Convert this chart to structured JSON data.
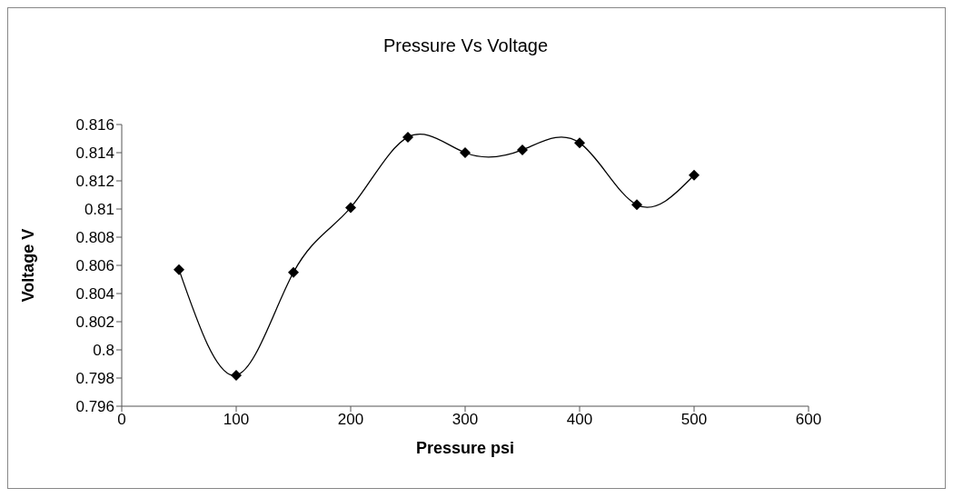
{
  "chart_data": {
    "type": "line",
    "title": "Pressure Vs Voltage",
    "xlabel": "Pressure psi",
    "ylabel": "Voltage V",
    "x": [
      50,
      100,
      150,
      200,
      250,
      300,
      350,
      400,
      450,
      500
    ],
    "series": [
      {
        "color": "#000000",
        "values": [
          0.8057,
          0.7982,
          0.8055,
          0.8101,
          0.8151,
          0.814,
          0.8142,
          0.8147,
          0.8103,
          0.8124
        ]
      }
    ],
    "xlim": [
      0,
      600
    ],
    "xticks": [
      0,
      100,
      200,
      300,
      400,
      500,
      600
    ],
    "ylim": [
      0.796,
      0.816
    ],
    "yticks": [
      0.796,
      0.798,
      0.8,
      0.802,
      0.804,
      0.806,
      0.808,
      0.81,
      0.812,
      0.814,
      0.816
    ],
    "grid": false,
    "legend": false,
    "marker": "diamond",
    "line_style": "solid"
  }
}
